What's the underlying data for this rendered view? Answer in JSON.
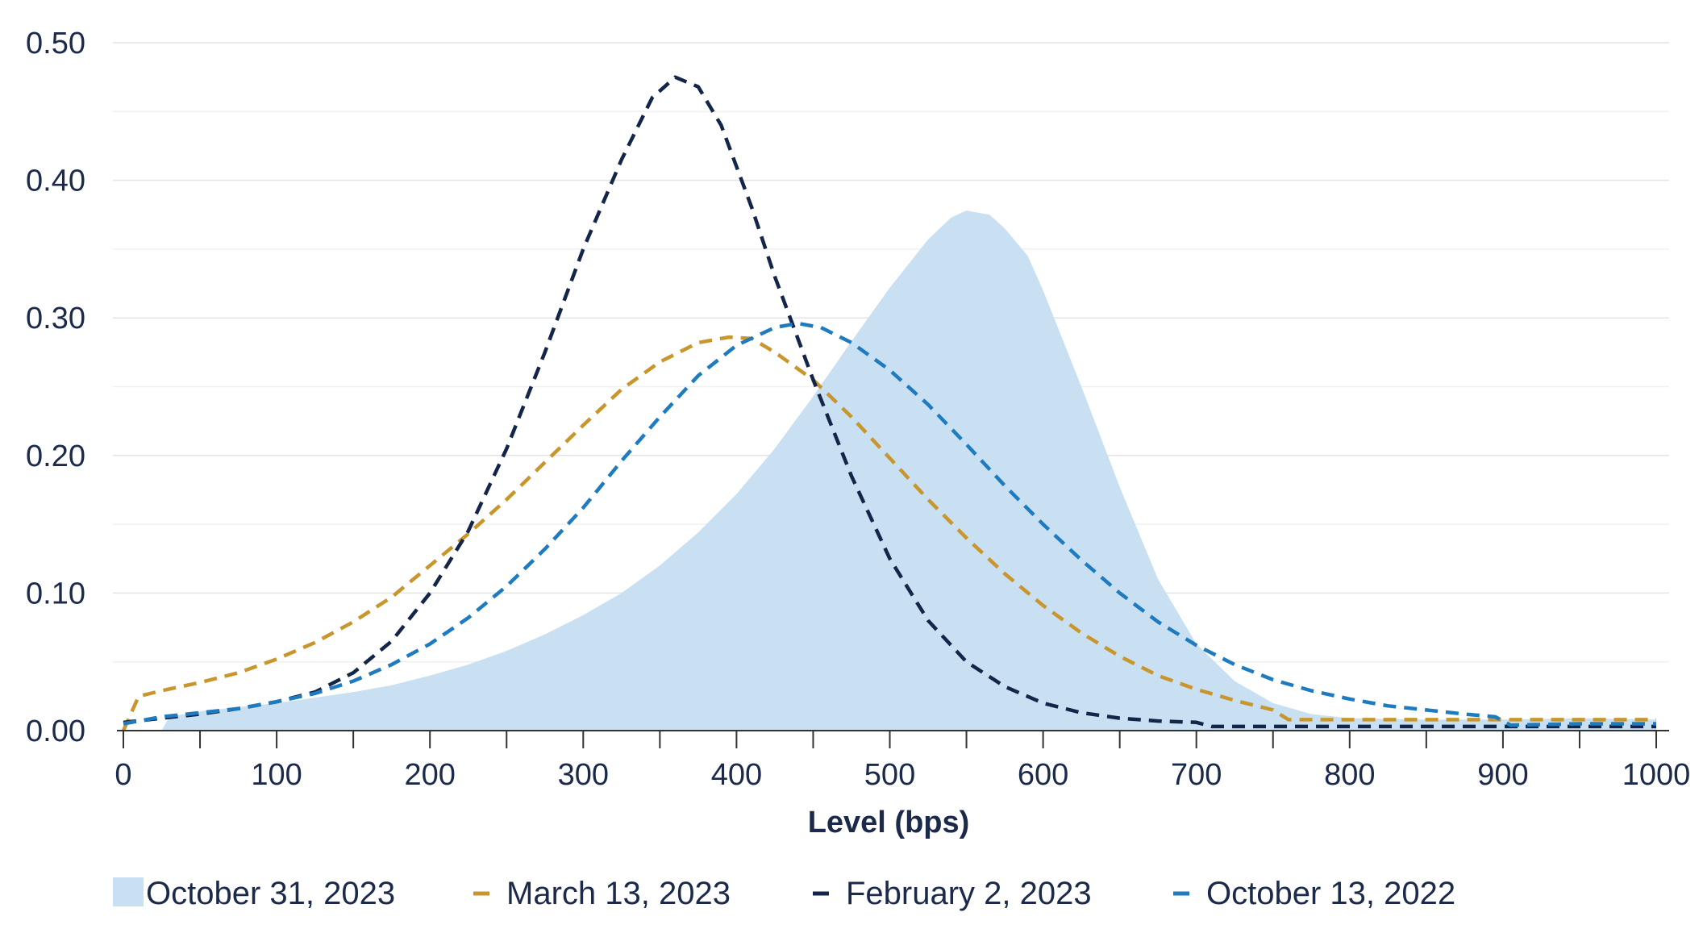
{
  "chart_data": {
    "type": "line",
    "title": "",
    "xlabel": "Level (bps)",
    "ylabel": "",
    "xlim": [
      0,
      1000
    ],
    "ylim": [
      0,
      0.5
    ],
    "x_ticks": [
      "0",
      "100",
      "200",
      "300",
      "400",
      "500",
      "600",
      "700",
      "800",
      "900",
      "1000"
    ],
    "y_ticks": [
      "0.00",
      "0.10",
      "0.20",
      "0.30",
      "0.40",
      "0.50"
    ],
    "grid": true,
    "legend_position": "bottom",
    "series": [
      {
        "name": "October 31, 2023",
        "style": "area",
        "color": "#c9dff2",
        "points": [
          [
            0,
            0.0
          ],
          [
            25,
            0.0
          ],
          [
            30,
            0.01
          ],
          [
            50,
            0.014
          ],
          [
            75,
            0.017
          ],
          [
            100,
            0.02
          ],
          [
            125,
            0.024
          ],
          [
            150,
            0.028
          ],
          [
            175,
            0.033
          ],
          [
            200,
            0.04
          ],
          [
            225,
            0.048
          ],
          [
            250,
            0.058
          ],
          [
            275,
            0.07
          ],
          [
            300,
            0.084
          ],
          [
            325,
            0.1
          ],
          [
            350,
            0.12
          ],
          [
            375,
            0.144
          ],
          [
            400,
            0.172
          ],
          [
            425,
            0.205
          ],
          [
            450,
            0.243
          ],
          [
            475,
            0.283
          ],
          [
            500,
            0.322
          ],
          [
            525,
            0.357
          ],
          [
            540,
            0.373
          ],
          [
            550,
            0.378
          ],
          [
            565,
            0.375
          ],
          [
            575,
            0.365
          ],
          [
            590,
            0.345
          ],
          [
            600,
            0.32
          ],
          [
            625,
            0.25
          ],
          [
            650,
            0.177
          ],
          [
            675,
            0.11
          ],
          [
            700,
            0.063
          ],
          [
            725,
            0.036
          ],
          [
            750,
            0.02
          ],
          [
            775,
            0.012
          ],
          [
            800,
            0.009
          ],
          [
            850,
            0.008
          ],
          [
            900,
            0.008
          ],
          [
            950,
            0.009
          ],
          [
            1000,
            0.008
          ]
        ]
      },
      {
        "name": "March 13, 2023",
        "style": "dashed",
        "color": "#c9962e",
        "points": [
          [
            0,
            0.0
          ],
          [
            10,
            0.025
          ],
          [
            25,
            0.029
          ],
          [
            50,
            0.035
          ],
          [
            75,
            0.042
          ],
          [
            100,
            0.052
          ],
          [
            125,
            0.064
          ],
          [
            150,
            0.079
          ],
          [
            175,
            0.097
          ],
          [
            200,
            0.12
          ],
          [
            225,
            0.143
          ],
          [
            250,
            0.168
          ],
          [
            275,
            0.195
          ],
          [
            300,
            0.222
          ],
          [
            325,
            0.248
          ],
          [
            350,
            0.268
          ],
          [
            375,
            0.282
          ],
          [
            395,
            0.286
          ],
          [
            410,
            0.285
          ],
          [
            425,
            0.275
          ],
          [
            450,
            0.255
          ],
          [
            475,
            0.228
          ],
          [
            500,
            0.198
          ],
          [
            525,
            0.168
          ],
          [
            550,
            0.14
          ],
          [
            575,
            0.114
          ],
          [
            600,
            0.091
          ],
          [
            625,
            0.071
          ],
          [
            650,
            0.054
          ],
          [
            675,
            0.04
          ],
          [
            700,
            0.03
          ],
          [
            725,
            0.022
          ],
          [
            750,
            0.015
          ],
          [
            760,
            0.008
          ],
          [
            800,
            0.008
          ],
          [
            900,
            0.008
          ],
          [
            1000,
            0.008
          ]
        ]
      },
      {
        "name": "February 2, 2023",
        "style": "dashed",
        "color": "#13264a",
        "points": [
          [
            0,
            0.006
          ],
          [
            25,
            0.009
          ],
          [
            50,
            0.012
          ],
          [
            75,
            0.016
          ],
          [
            100,
            0.021
          ],
          [
            125,
            0.028
          ],
          [
            150,
            0.042
          ],
          [
            175,
            0.065
          ],
          [
            200,
            0.1
          ],
          [
            225,
            0.145
          ],
          [
            250,
            0.205
          ],
          [
            275,
            0.275
          ],
          [
            300,
            0.35
          ],
          [
            325,
            0.415
          ],
          [
            345,
            0.46
          ],
          [
            360,
            0.475
          ],
          [
            375,
            0.468
          ],
          [
            390,
            0.44
          ],
          [
            410,
            0.38
          ],
          [
            425,
            0.33
          ],
          [
            450,
            0.255
          ],
          [
            475,
            0.185
          ],
          [
            500,
            0.125
          ],
          [
            525,
            0.08
          ],
          [
            550,
            0.05
          ],
          [
            575,
            0.032
          ],
          [
            600,
            0.02
          ],
          [
            625,
            0.013
          ],
          [
            650,
            0.009
          ],
          [
            675,
            0.007
          ],
          [
            700,
            0.006
          ],
          [
            710,
            0.003
          ],
          [
            800,
            0.003
          ],
          [
            900,
            0.003
          ],
          [
            1000,
            0.003
          ]
        ]
      },
      {
        "name": "October 13, 2022",
        "style": "dashed",
        "color": "#1f7bbf",
        "points": [
          [
            0,
            0.005
          ],
          [
            25,
            0.01
          ],
          [
            50,
            0.013
          ],
          [
            75,
            0.016
          ],
          [
            100,
            0.021
          ],
          [
            125,
            0.027
          ],
          [
            150,
            0.036
          ],
          [
            175,
            0.048
          ],
          [
            200,
            0.063
          ],
          [
            225,
            0.082
          ],
          [
            250,
            0.105
          ],
          [
            275,
            0.132
          ],
          [
            300,
            0.162
          ],
          [
            325,
            0.196
          ],
          [
            350,
            0.228
          ],
          [
            375,
            0.258
          ],
          [
            400,
            0.28
          ],
          [
            425,
            0.293
          ],
          [
            440,
            0.296
          ],
          [
            455,
            0.293
          ],
          [
            475,
            0.282
          ],
          [
            500,
            0.262
          ],
          [
            525,
            0.237
          ],
          [
            550,
            0.208
          ],
          [
            575,
            0.178
          ],
          [
            600,
            0.15
          ],
          [
            625,
            0.124
          ],
          [
            650,
            0.1
          ],
          [
            675,
            0.079
          ],
          [
            700,
            0.062
          ],
          [
            725,
            0.048
          ],
          [
            750,
            0.037
          ],
          [
            775,
            0.029
          ],
          [
            800,
            0.023
          ],
          [
            825,
            0.018
          ],
          [
            850,
            0.015
          ],
          [
            875,
            0.012
          ],
          [
            895,
            0.01
          ],
          [
            905,
            0.004
          ],
          [
            950,
            0.005
          ],
          [
            1000,
            0.005
          ]
        ]
      }
    ]
  }
}
